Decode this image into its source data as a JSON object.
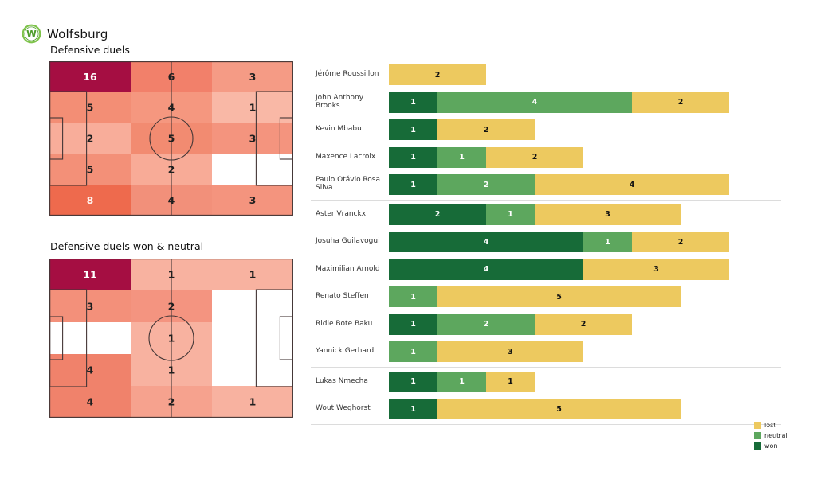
{
  "header": {
    "team": "Wolfsburg",
    "logo_letter": "W",
    "logo_color": "#65b32e"
  },
  "chart_data": [
    {
      "type": "heatmap",
      "title": "Defensive duels",
      "layout_hint": "soccer pitch, 3 columns x 5 rows, attacking left-to-right",
      "values": [
        [
          16,
          6,
          3
        ],
        [
          5,
          4,
          1
        ],
        [
          2,
          5,
          3
        ],
        [
          5,
          2,
          0
        ],
        [
          8,
          4,
          3
        ]
      ],
      "colors": [
        [
          "#a50e42",
          "#f2806a",
          "#f59b85"
        ],
        [
          "#f38e75",
          "#f5977f",
          "#f9b8a6"
        ],
        [
          "#f8ad9a",
          "#f28b71",
          "#f4947e"
        ],
        [
          "#f39078",
          "#f8ab97",
          "#ffffff"
        ],
        [
          "#ee6a4d",
          "#f2907a",
          "#f4947e"
        ]
      ],
      "label_colors": [
        [
          "#ffffff",
          "#1f1f1f",
          "#1f1f1f"
        ],
        [
          "#1f1f1f",
          "#1f1f1f",
          "#1f1f1f"
        ],
        [
          "#1f1f1f",
          "#1f1f1f",
          "#1f1f1f"
        ],
        [
          "#1f1f1f",
          "#1f1f1f",
          "#1f1f1f"
        ],
        [
          "#fff3ee",
          "#1f1f1f",
          "#1f1f1f"
        ]
      ]
    },
    {
      "type": "heatmap",
      "title": "Defensive duels won & neutral",
      "layout_hint": "soccer pitch, 3 columns x 5 rows, attacking left-to-right",
      "values": [
        [
          11,
          1,
          1
        ],
        [
          3,
          2,
          0
        ],
        [
          0,
          1,
          0
        ],
        [
          4,
          1,
          0
        ],
        [
          4,
          2,
          1
        ]
      ],
      "colors": [
        [
          "#a50e42",
          "#f8b2a0",
          "#f8b2a0"
        ],
        [
          "#f3907a",
          "#f49480",
          "#ffffff"
        ],
        [
          "#ffffff",
          "#f8b2a0",
          "#ffffff"
        ],
        [
          "#f0826b",
          "#f8b2a0",
          "#ffffff"
        ],
        [
          "#f0826b",
          "#f6a28e",
          "#f8b2a0"
        ]
      ],
      "label_colors": [
        [
          "#ffffff",
          "#1f1f1f",
          "#1f1f1f"
        ],
        [
          "#1f1f1f",
          "#1f1f1f",
          "#1f1f1f"
        ],
        [
          "#1f1f1f",
          "#1f1f1f",
          "#1f1f1f"
        ],
        [
          "#1f1f1f",
          "#1f1f1f",
          "#1f1f1f"
        ],
        [
          "#1f1f1f",
          "#1f1f1f",
          "#1f1f1f"
        ]
      ]
    },
    {
      "type": "bar",
      "stacked": true,
      "orientation": "horizontal",
      "series_names": [
        "won",
        "neutral",
        "lost"
      ],
      "colors": {
        "won": "#176b38",
        "neutral": "#5da75e",
        "lost": "#edc95f"
      },
      "value_label_colors": {
        "won": "#ffffff",
        "neutral": "#ffffff",
        "lost": "#111111"
      },
      "legend": [
        {
          "key": "lost",
          "label": "lost",
          "color": "#edc95f"
        },
        {
          "key": "neutral",
          "label": "neutral",
          "color": "#5da75e"
        },
        {
          "key": "won",
          "label": "won",
          "color": "#176b38"
        }
      ],
      "legend_position": "bottom-right",
      "xlim": [
        0,
        7
      ],
      "groups": [
        {
          "players": [
            {
              "name": "Jérôme Roussillon",
              "won": 0,
              "neutral": 0,
              "lost": 2
            },
            {
              "name": "John Anthony Brooks",
              "won": 1,
              "neutral": 4,
              "lost": 2
            },
            {
              "name": "Kevin Mbabu",
              "won": 1,
              "neutral": 0,
              "lost": 2
            },
            {
              "name": "Maxence Lacroix",
              "won": 1,
              "neutral": 1,
              "lost": 2
            },
            {
              "name": "Paulo Otávio Rosa Silva",
              "won": 1,
              "neutral": 2,
              "lost": 4
            }
          ]
        },
        {
          "players": [
            {
              "name": "Aster Vranckx",
              "won": 2,
              "neutral": 1,
              "lost": 3
            },
            {
              "name": "Josuha Guilavogui",
              "won": 4,
              "neutral": 1,
              "lost": 2
            },
            {
              "name": "Maximilian Arnold",
              "won": 4,
              "neutral": 0,
              "lost": 3
            },
            {
              "name": "Renato Steffen",
              "won": 0,
              "neutral": 1,
              "lost": 5
            },
            {
              "name": "Ridle Bote Baku",
              "won": 1,
              "neutral": 2,
              "lost": 2
            },
            {
              "name": "Yannick Gerhardt",
              "won": 0,
              "neutral": 1,
              "lost": 3
            }
          ]
        },
        {
          "players": [
            {
              "name": "Lukas Nmecha",
              "won": 1,
              "neutral": 1,
              "lost": 1
            },
            {
              "name": "Wout Weghorst",
              "won": 1,
              "neutral": 0,
              "lost": 5
            }
          ]
        }
      ]
    }
  ]
}
